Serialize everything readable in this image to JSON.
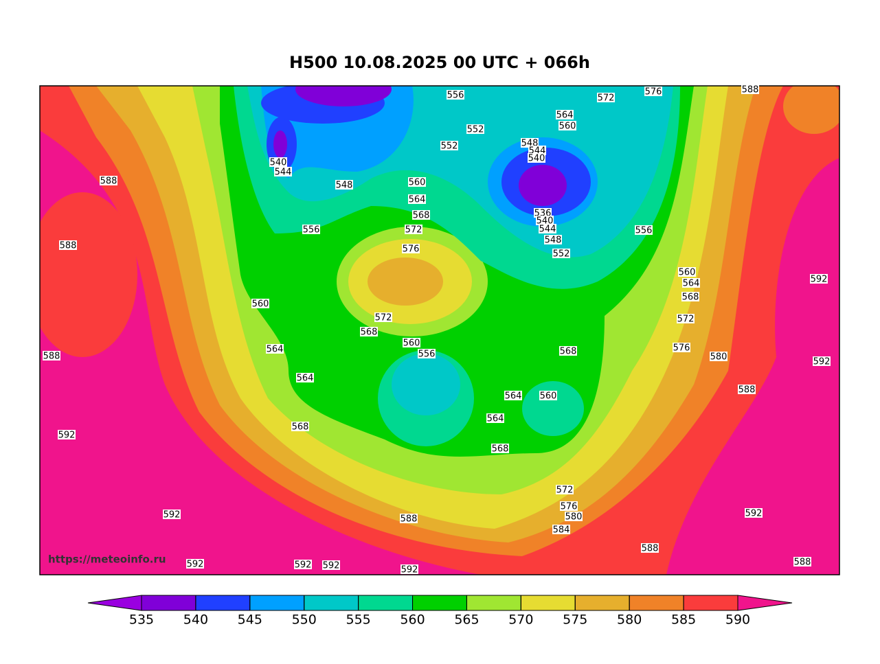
{
  "title": "H500  10.08.2025 00 UTC + 066h",
  "watermark": "https://meteoinfo.ru",
  "map": {
    "contour_labels": [
      572,
      576,
      588,
      556,
      564,
      560,
      552,
      552,
      548,
      544,
      540,
      540,
      544,
      548,
      560,
      564,
      568,
      572,
      576,
      556,
      588,
      588,
      536,
      540,
      544,
      548,
      552,
      556,
      560,
      564,
      568,
      572,
      576,
      580,
      588,
      592,
      592,
      560,
      572,
      568,
      560,
      556,
      564,
      568,
      588,
      564,
      564,
      560,
      564,
      568,
      568,
      592,
      572,
      576,
      580,
      584,
      592,
      588,
      592,
      588,
      592,
      592,
      592,
      592,
      588
    ]
  },
  "colorbar": {
    "ticks": [
      535,
      540,
      545,
      550,
      555,
      560,
      565,
      570,
      575,
      580,
      585,
      590
    ],
    "colors": [
      "#9a00e0",
      "#8000d8",
      "#2040ff",
      "#00a0ff",
      "#00c8c8",
      "#00d890",
      "#00d000",
      "#a0e632",
      "#e6dc32",
      "#e6af2d",
      "#f08228",
      "#fa3c3c",
      "#f0148c"
    ]
  }
}
